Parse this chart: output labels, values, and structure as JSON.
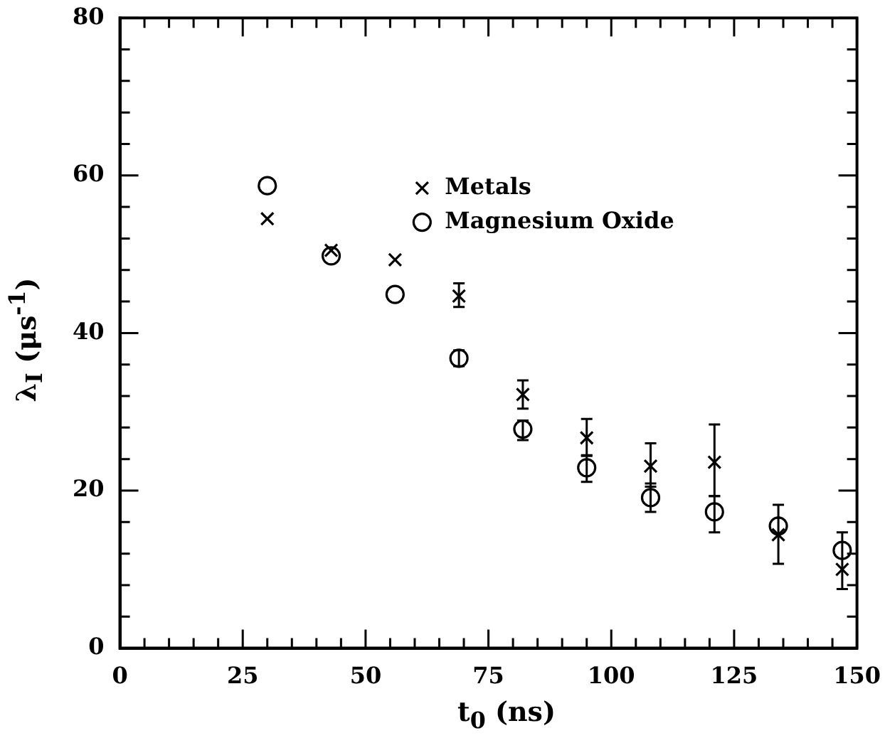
{
  "chart_data": {
    "type": "scatter",
    "xlabel": "t$_{0}$ (ns)",
    "ylabel": "λ$_{I}$ (μs$^{-1}$)",
    "xlim": [
      0,
      150
    ],
    "ylim": [
      0,
      80
    ],
    "xticks": [
      0,
      {
        "value": 5,
        "label": null
      },
      {
        "value": 10,
        "label": null
      },
      {
        "value": 15,
        "label": null
      },
      {
        "value": 20,
        "label": null
      },
      25,
      {
        "value": 30,
        "label": null
      },
      {
        "value": 35,
        "label": null
      },
      {
        "value": 40,
        "label": null
      },
      {
        "value": 45,
        "label": null
      },
      50,
      {
        "value": 55,
        "label": null
      },
      {
        "value": 60,
        "label": null
      },
      {
        "value": 65,
        "label": null
      },
      {
        "value": 70,
        "label": null
      },
      75,
      {
        "value": 80,
        "label": null
      },
      {
        "value": 85,
        "label": null
      },
      {
        "value": 90,
        "label": null
      },
      {
        "value": 95,
        "label": null
      },
      100,
      {
        "value": 105,
        "label": null
      },
      {
        "value": 110,
        "label": null
      },
      {
        "value": 115,
        "label": null
      },
      {
        "value": 120,
        "label": null
      },
      125,
      {
        "value": 130,
        "label": null
      },
      {
        "value": 135,
        "label": null
      },
      {
        "value": 140,
        "label": null
      },
      {
        "value": 145,
        "label": null
      },
      150
    ],
    "yticks": [
      0,
      {
        "value": 4,
        "label": null
      },
      {
        "value": 8,
        "label": null
      },
      {
        "value": 12,
        "label": null
      },
      {
        "value": 16,
        "label": null
      },
      20,
      {
        "value": 24,
        "label": null
      },
      {
        "value": 28,
        "label": null
      },
      {
        "value": 32,
        "label": null
      },
      {
        "value": 36,
        "label": null
      },
      40,
      {
        "value": 44,
        "label": null
      },
      {
        "value": 48,
        "label": null
      },
      {
        "value": 52,
        "label": null
      },
      {
        "value": 56,
        "label": null
      },
      60,
      {
        "value": 64,
        "label": null
      },
      {
        "value": 68,
        "label": null
      },
      {
        "value": 72,
        "label": null
      },
      {
        "value": 76,
        "label": null
      },
      80
    ],
    "grid": false,
    "legend": "top",
    "series": [
      {
        "name": "Metals",
        "color": "#000000",
        "marker": "cross",
        "x": [
          30,
          43,
          56,
          69,
          82,
          95,
          108,
          121,
          134,
          147
        ],
        "values": [
          54.5,
          50.5,
          49.3,
          44.7,
          32.2,
          26.7,
          23.1,
          23.6,
          14.4,
          10
        ],
        "errors": [
          null,
          null,
          null,
          [
            43.3,
            46.3
          ],
          [
            30.4,
            34
          ],
          [
            24.5,
            29.1
          ],
          [
            20.5,
            26
          ],
          [
            19.3,
            28.4
          ],
          [
            10.7,
            18.2
          ],
          [
            7.5,
            14.7
          ]
        ]
      },
      {
        "name": "Magnesium Oxide",
        "color": "#000000",
        "marker": "circle",
        "x": [
          30,
          43,
          56,
          69,
          82,
          95,
          108,
          121,
          134,
          147
        ],
        "values": [
          58.7,
          49.8,
          44.9,
          36.8,
          27.8,
          22.9,
          19.1,
          17.3,
          15.5,
          12.4
        ],
        "errors": [
          null,
          null,
          null,
          [
            35.8,
            37.8
          ],
          [
            26.4,
            28.9
          ],
          [
            21.1,
            24.4
          ],
          [
            17.3,
            20.9
          ],
          [
            14.7,
            19.3
          ],
          null,
          null
        ]
      }
    ]
  }
}
